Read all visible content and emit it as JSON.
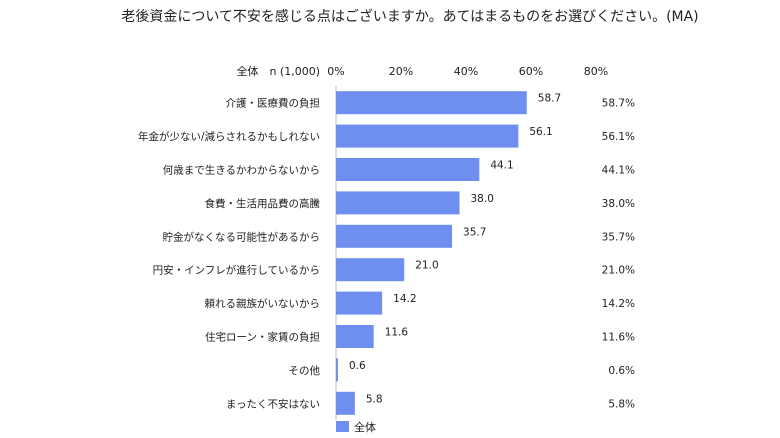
{
  "chart_data": {
    "type": "bar",
    "orientation": "horizontal",
    "title": "老後資金について不安を感じる点はございますか。あてはまるものをお選びください。(MA)",
    "header_label": "全体　n (1,000)",
    "categories": [
      "介護・医療費の負担",
      "年金が少ない/減らされるかもしれない",
      "何歳まで生きるかわからないから",
      "食費・生活用品費の高騰",
      "貯金がなくなる可能性があるから",
      "円安・インフレが進行しているから",
      "頼れる親族がいないから",
      "住宅ローン・家賃の負担",
      "その他",
      "まったく不安はない"
    ],
    "series": [
      {
        "name": "全体",
        "values": [
          58.7,
          56.1,
          44.1,
          38.0,
          35.7,
          21.0,
          14.2,
          11.6,
          0.6,
          5.8
        ],
        "value_labels": [
          "58.7",
          "56.1",
          "44.1",
          "38.0",
          "35.7",
          "21.0",
          "14.2",
          "11.6",
          "0.6",
          "5.8"
        ],
        "percent_labels": [
          "58.7%",
          "56.1%",
          "44.1%",
          "38.0%",
          "35.7%",
          "21.0%",
          "14.2%",
          "11.6%",
          "0.6%",
          "5.8%"
        ]
      }
    ],
    "xlim": [
      0,
      80
    ],
    "ticks": [
      0,
      20,
      40,
      60,
      80
    ],
    "tick_labels": [
      "0%",
      "20%",
      "40%",
      "60%",
      "80%"
    ],
    "grid": false,
    "legend": "bottom",
    "colors": {
      "bar": "#6e8fef",
      "text": "#222222",
      "axis": "#bfbfbf"
    }
  }
}
